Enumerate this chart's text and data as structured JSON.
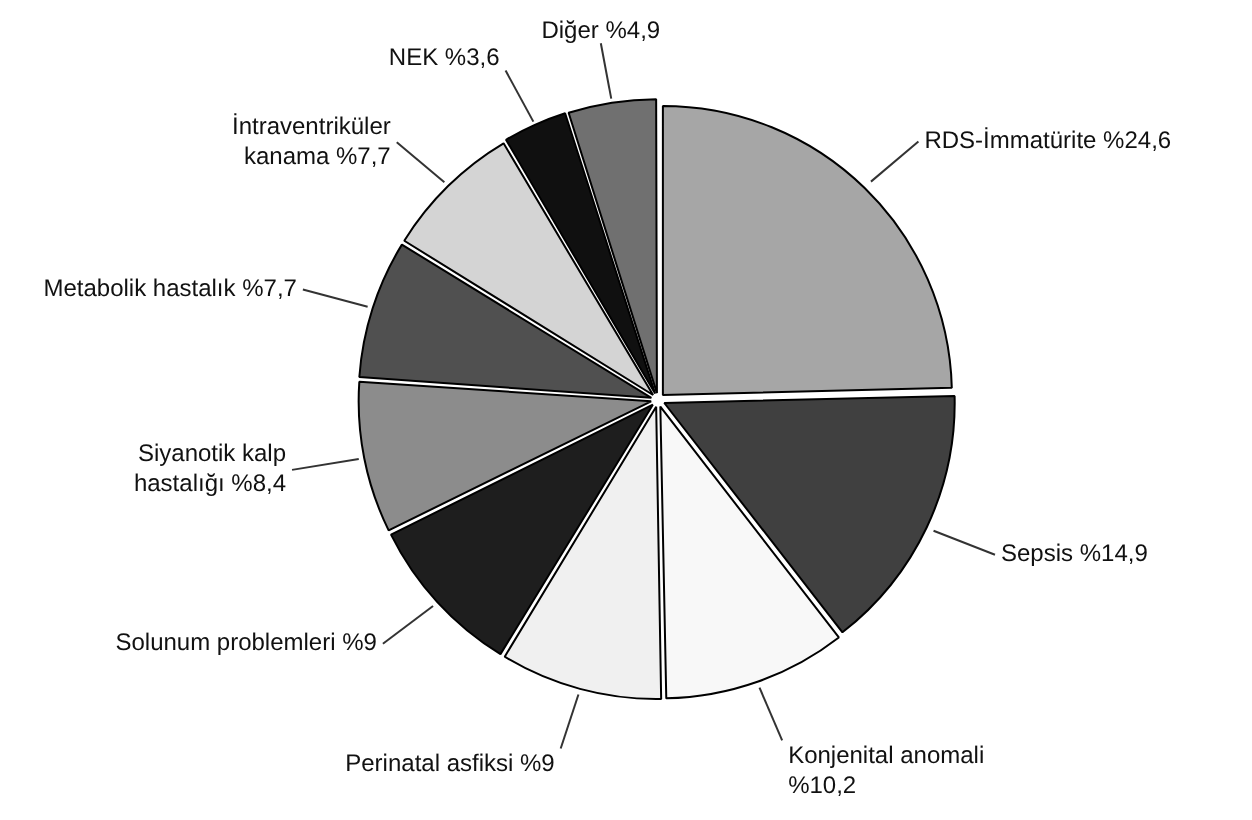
{
  "chart_data": {
    "type": "pie",
    "categories": [
      "RDS-İmmatürite",
      "Sepsis",
      "Konjenital anomali",
      "Perinatal asfiksi",
      "Solunum problemleri",
      "Siyanotik kalp hastalığı",
      "Metabolik hastalık",
      "İntraventriküler kanama",
      "NEK",
      "Diğer"
    ],
    "values": [
      24.6,
      14.9,
      10.2,
      9,
      9,
      8.4,
      7.7,
      7.7,
      3.6,
      4.9
    ],
    "value_labels": [
      "%24,6",
      "%14,9",
      "%10,2",
      "%9",
      "%9",
      "%8,4",
      "%7,7",
      "%7,7",
      "%3,6",
      "%4,9"
    ],
    "colors": [
      "#a6a6a6",
      "#404040",
      "#f8f8f8",
      "#f0f0f0",
      "#1e1e1e",
      "#8c8c8c",
      "#505050",
      "#d4d4d4",
      "#101010",
      "#707070"
    ],
    "legend": false
  }
}
